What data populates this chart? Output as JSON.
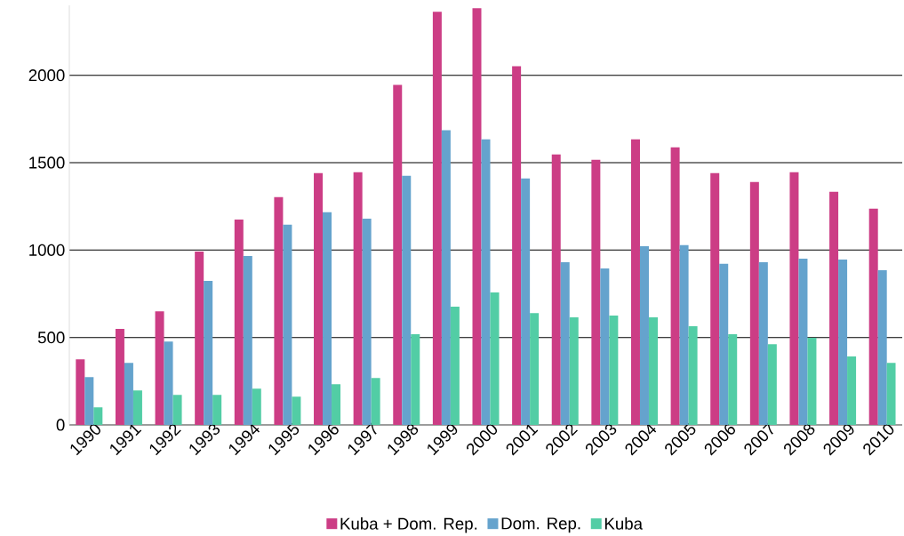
{
  "chart_data": {
    "type": "bar",
    "categories": [
      "1990",
      "1991",
      "1992",
      "1993",
      "1994",
      "1995",
      "1996",
      "1997",
      "1998",
      "1999",
      "2000",
      "2001",
      "2002",
      "2003",
      "2004",
      "2005",
      "2006",
      "2007",
      "2008",
      "2009",
      "2010"
    ],
    "series": [
      {
        "name": "Kuba + Dom. Rep.",
        "color": "#cc3d85",
        "values": [
          375,
          549,
          650,
          992,
          1175,
          1303,
          1440,
          1445,
          1945,
          2363,
          2383,
          2052,
          1547,
          1517,
          1634,
          1588,
          1440,
          1389,
          1445,
          1333,
          1237
        ]
      },
      {
        "name": "Dom. Rep.",
        "color": "#65a3cd",
        "values": [
          273,
          355,
          477,
          824,
          966,
          1145,
          1216,
          1180,
          1425,
          1685,
          1634,
          1410,
          931,
          895,
          1022,
          1028,
          921,
          931,
          951,
          946,
          885
        ]
      },
      {
        "name": "Kuba",
        "color": "#52cda5",
        "values": [
          100,
          197,
          172,
          172,
          207,
          161,
          233,
          268,
          518,
          676,
          758,
          640,
          615,
          625,
          615,
          564,
          518,
          462,
          498,
          391,
          355
        ]
      }
    ],
    "ylim": [
      0,
      2400
    ],
    "yticks": [
      0,
      500,
      1000,
      1500,
      2000
    ],
    "grid": "y",
    "legend": "bottom"
  }
}
